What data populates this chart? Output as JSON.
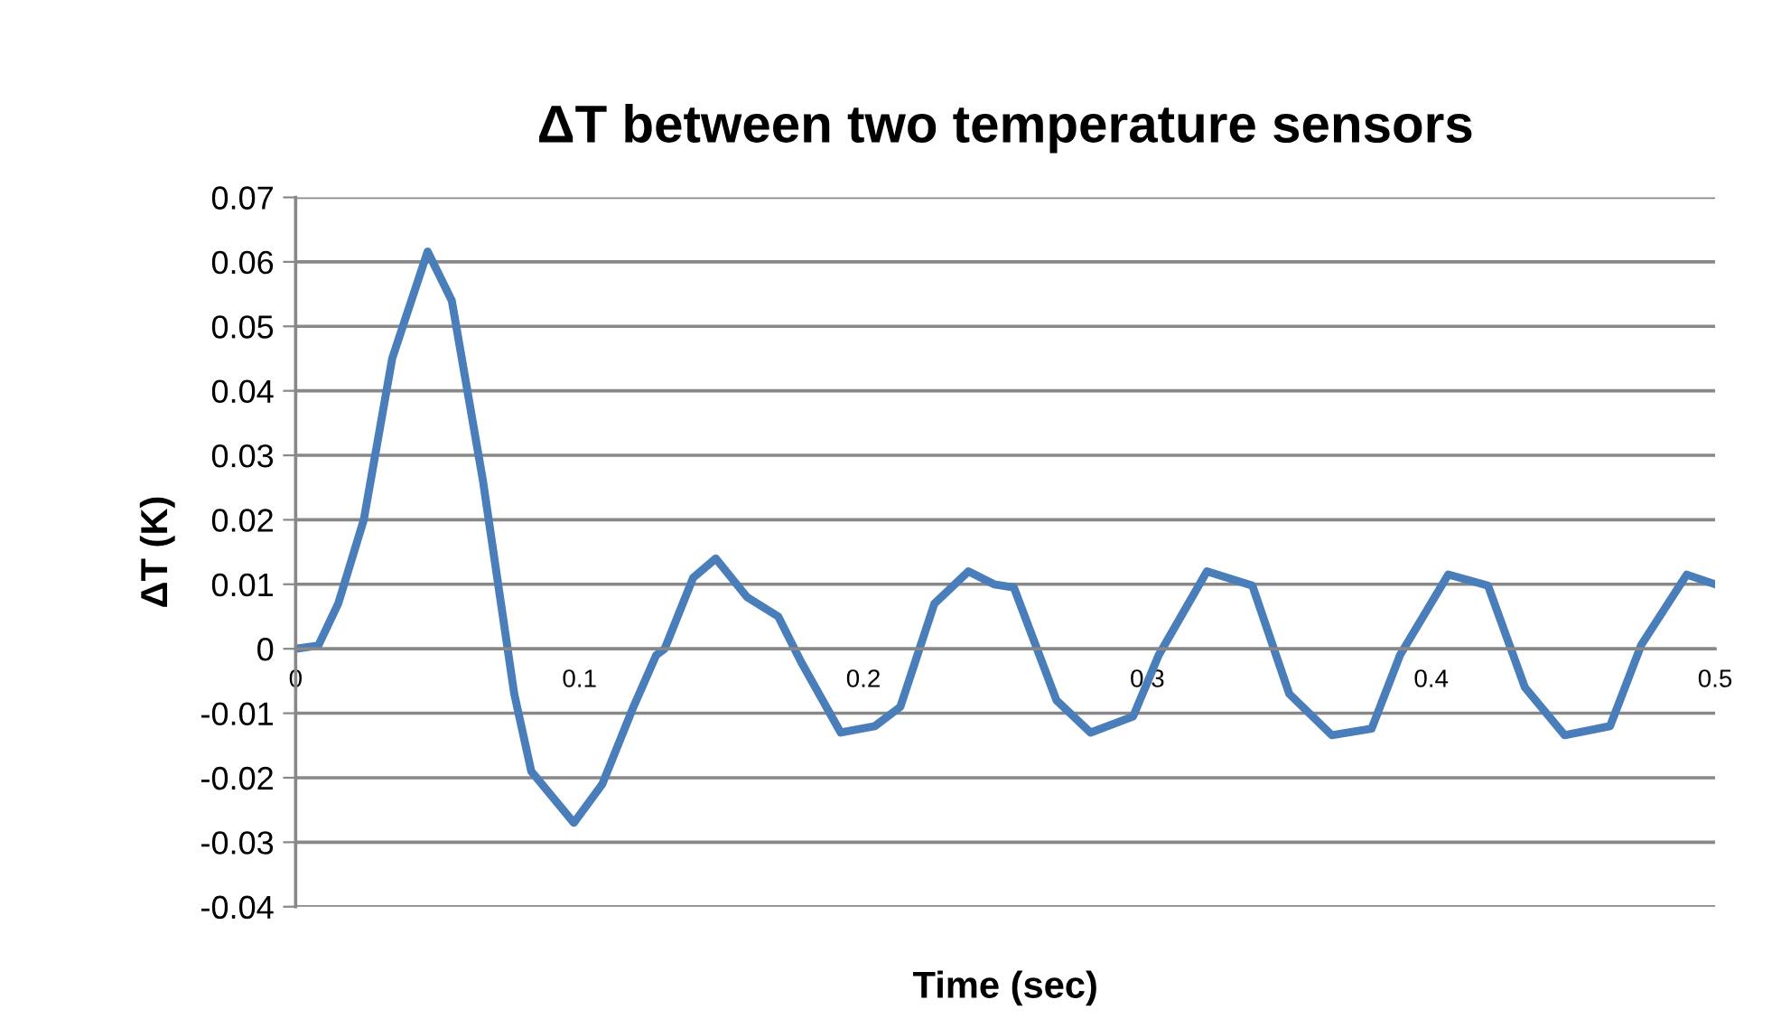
{
  "chart_data": {
    "type": "line",
    "title": "ΔT between two temperature sensors",
    "xlabel": "Time (sec)",
    "ylabel": "ΔT (K)",
    "x": [
      0,
      0.008,
      0.015,
      0.024,
      0.034,
      0.0465,
      0.055,
      0.066,
      0.077,
      0.083,
      0.098,
      0.108,
      0.119,
      0.127,
      0.13,
      0.14,
      0.148,
      0.159,
      0.17,
      0.178,
      0.192,
      0.204,
      0.213,
      0.225,
      0.237,
      0.246,
      0.253,
      0.268,
      0.28,
      0.295,
      0.304,
      0.321,
      0.337,
      0.35,
      0.365,
      0.379,
      0.389,
      0.406,
      0.42,
      0.433,
      0.447,
      0.463,
      0.474,
      0.49,
      0.5
    ],
    "series": [
      {
        "color": "#4a7ebb",
        "values": [
          0,
          0.0005,
          0.007,
          0.02,
          0.045,
          0.0616,
          0.054,
          0.026,
          -0.007,
          -0.019,
          -0.027,
          -0.021,
          -0.009,
          -0.001,
          0,
          0.011,
          0.014,
          0.008,
          0.005,
          -0.002,
          -0.013,
          -0.012,
          -0.009,
          0.007,
          0.012,
          0.01,
          0.0095,
          -0.008,
          -0.013,
          -0.0105,
          -0.001,
          0.012,
          0.0098,
          -0.007,
          -0.0134,
          -0.0124,
          -0.001,
          0.0115,
          0.0098,
          -0.006,
          -0.0134,
          -0.012,
          0.0006,
          0.0115,
          0.01
        ]
      }
    ],
    "xlim": [
      0,
      0.5
    ],
    "xticks": [
      0,
      0.1,
      0.2,
      0.3,
      0.4,
      0.5
    ],
    "ylim": [
      -0.04,
      0.07
    ],
    "yticks": [
      -0.04,
      -0.03,
      -0.02,
      -0.01,
      0,
      0.01,
      0.02,
      0.03,
      0.04,
      0.05,
      0.06,
      0.07
    ],
    "grid": "y",
    "legend": false,
    "marker": "none",
    "line_style": "solid"
  }
}
